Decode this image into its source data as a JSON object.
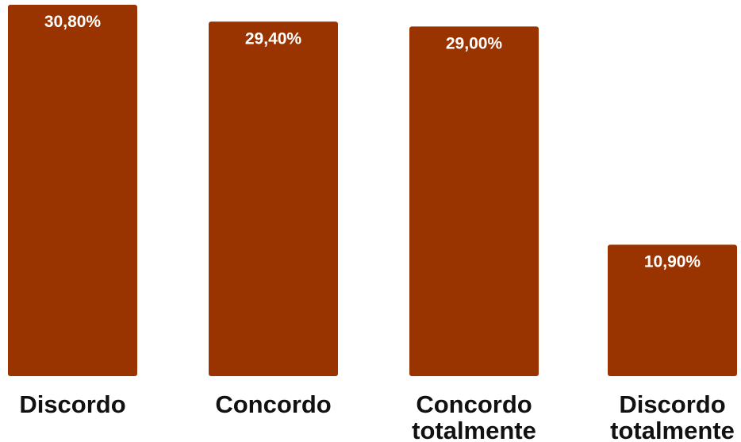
{
  "chart_data": {
    "type": "bar",
    "categories": [
      [
        "Discordo"
      ],
      [
        "Concordo"
      ],
      [
        "Concordo",
        "totalmente"
      ],
      [
        "Discordo",
        "totalmente"
      ]
    ],
    "values": [
      30.8,
      29.4,
      29.0,
      10.9
    ],
    "data_labels": [
      "30,80%",
      "29,40%",
      "29,00%",
      "10,90%"
    ],
    "title": "",
    "xlabel": "",
    "ylabel": "",
    "ylim": [
      0,
      30.8
    ],
    "grid": false,
    "legend": "none",
    "bar_color": "#993300",
    "label_color": "#ffffff",
    "category_color": "#111111"
  }
}
